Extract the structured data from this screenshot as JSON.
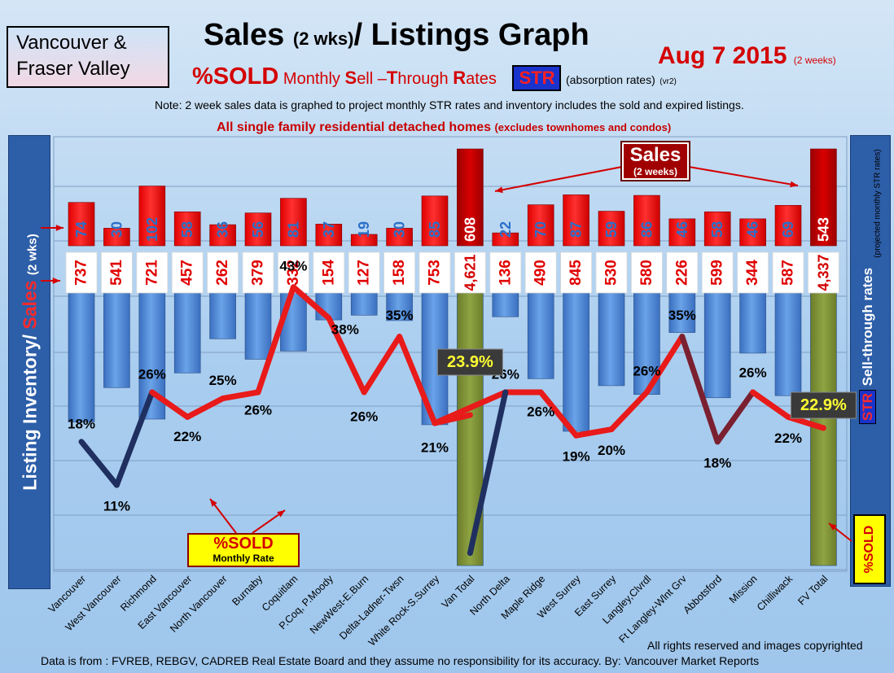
{
  "header": {
    "region": [
      "Vancouver &",
      "Fraser Valley"
    ],
    "title_main": "Sales ",
    "title_sub": "(2 wks)",
    "title_end": "/ Listings Graph",
    "date": "Aug 7 2015",
    "date_note": "(2 weeks)",
    "sold_label": "%SOLD",
    "sell_through_parts": [
      "Monthly ",
      "S",
      "ell ",
      "–",
      "T",
      "hrough ",
      "R",
      "ates"
    ],
    "str_badge": "STR",
    "absorption": "(absorption rates)",
    "version": "(vr2)",
    "note": "Note: 2 week sales data is graphed to project monthly STR rates and inventory includes the sold and expired listings.",
    "scope": "All single family residential detached homes",
    "scope_paren": "(excludes townhomes and condos)"
  },
  "side_labels": {
    "left_main": "Listing Inventory/ ",
    "left_sales": "Sales",
    "left_wks": "(2 wks)",
    "right_str": "STR",
    "right_main": " Sell-through rates",
    "right_note": "(projected monthly STR rates)",
    "sold_vertical": "%SOLD"
  },
  "callouts": {
    "sales_title": "Sales",
    "sales_sub": "(2 weeks)",
    "sold_box_title": "%SOLD",
    "sold_box_sub": "Monthly Rate"
  },
  "footer": {
    "copyright": "All rights reserved and  images copyrighted",
    "source": "Data is  from : FVREB, REBGV, CADREB Real Estate Board and they assume  no responsibility  for its accuracy. By: Vancouver Market Reports"
  },
  "colors": {
    "sales_bar": "#ff1a1a",
    "total_sales_bar": "#c40000",
    "listing_bar": "#4a87d6",
    "total_listing_bar": "#7d9134",
    "str_high": "#ff1a1a",
    "str_low": "#1a2a5a",
    "label_total": "#ffff33"
  },
  "chart_data": {
    "type": "bar",
    "categories": [
      "Vancouver",
      "West Vancouver",
      "Richmond",
      "East Vancouver",
      "North Vancouver",
      "Burnaby",
      "Coquitlam",
      "P.Coq, P.Moody",
      "NewWest-E.Burn",
      "Delta-Ladner-Twsn",
      "White Rock-S.Surrey",
      "Van Total",
      "North Delta",
      "Maple Ridge",
      "West Surrey",
      "East Surrey",
      "Langley,Clvrdl",
      "Ft Langley-Wlnt Grv",
      "Abbotsford",
      "Mission",
      "Chilliwack",
      "FV Total"
    ],
    "total_categories": [
      "Van Total",
      "FV Total"
    ],
    "series": [
      {
        "name": "Sales (2 weeks)",
        "values": [
          74,
          30,
          102,
          58,
          36,
          56,
          81,
          37,
          19,
          30,
          85,
          608,
          22,
          70,
          87,
          59,
          86,
          46,
          58,
          46,
          69,
          543
        ]
      },
      {
        "name": "Listing Inventory",
        "values": [
          737,
          541,
          721,
          457,
          262,
          379,
          332,
          154,
          127,
          158,
          753,
          4621,
          136,
          490,
          845,
          530,
          580,
          226,
          599,
          344,
          587,
          4337
        ]
      },
      {
        "name": "Sell-through rates",
        "values": [
          18,
          11,
          26,
          22,
          25,
          26,
          43,
          38,
          26,
          35,
          21,
          null,
          26,
          26,
          19,
          20,
          26,
          35,
          18,
          26,
          22,
          null
        ]
      }
    ],
    "totals_str": {
      "Van Total": "23.9%",
      "FV Total": "22.9%"
    },
    "grid": true
  }
}
